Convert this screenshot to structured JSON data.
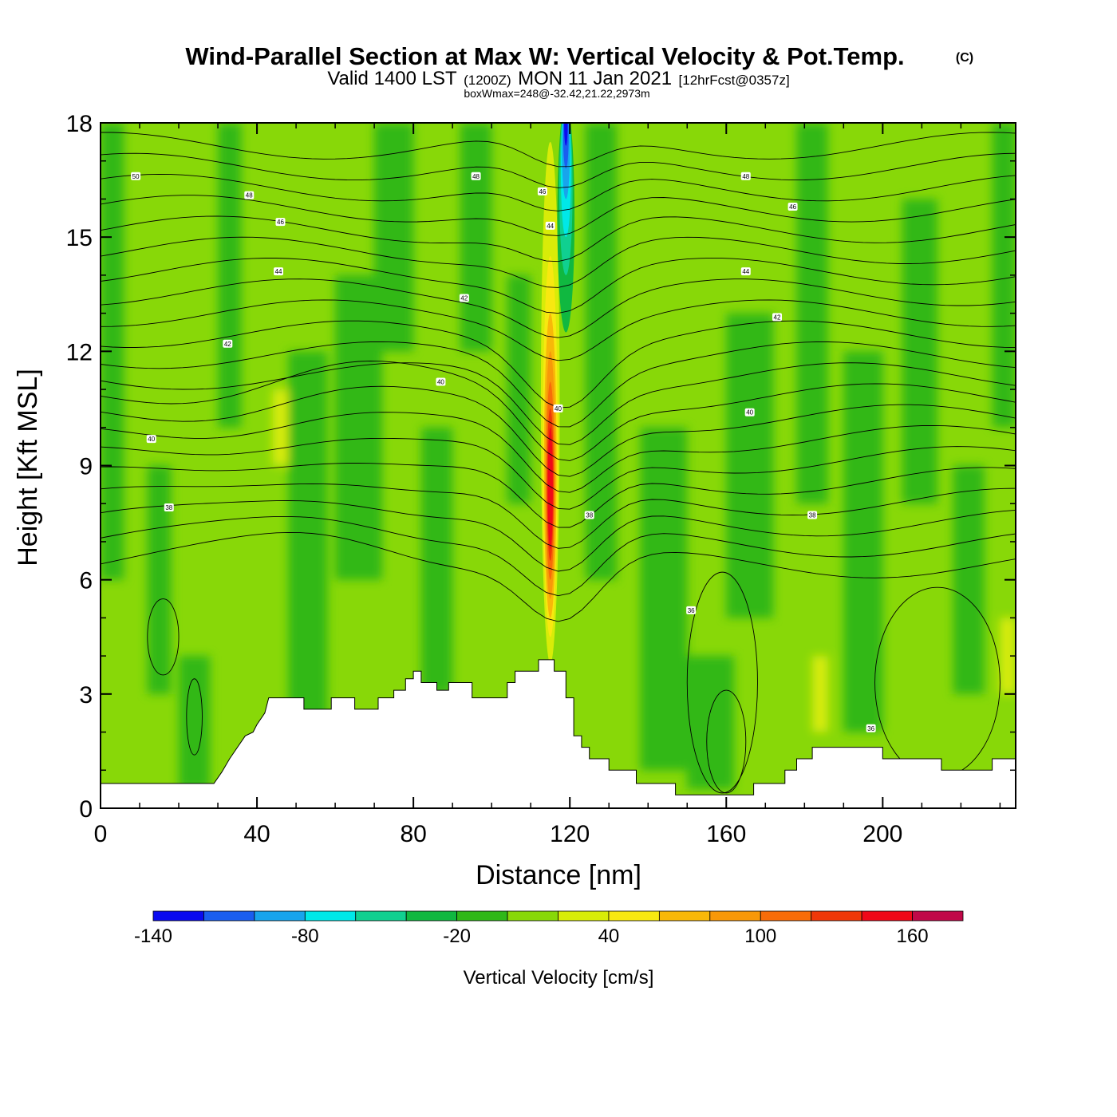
{
  "chart_data": {
    "type": "heatmap",
    "title": "Wind-Parallel Section at Max W: Vertical Velocity & Pot.Temp.",
    "title_mark": "(C)",
    "subtitle": {
      "valid_prefix": "Valid 1400 LST",
      "utc": "(1200Z)",
      "date": "MON 11 Jan 2021",
      "forecast": "[12hrFcst@0357z]"
    },
    "box_info": "boxWmax=248@-32.42,21.22,2973m",
    "xlabel": "Distance [nm]",
    "ylabel": "Height [Kft MSL]",
    "xlim": [
      0,
      234
    ],
    "ylim": [
      0,
      18
    ],
    "x_ticks": [
      0,
      40,
      80,
      120,
      160,
      200
    ],
    "y_ticks": [
      0,
      3,
      6,
      9,
      12,
      15,
      18
    ],
    "colorbar": {
      "label": "Vertical Velocity [cm/s]",
      "tick_labels": [
        "-140",
        "-80",
        "-20",
        "40",
        "100",
        "160"
      ],
      "tick_values": [
        -140,
        -80,
        -20,
        40,
        100,
        160
      ],
      "boundaries": [
        -140,
        -120,
        -100,
        -80,
        -60,
        -40,
        -20,
        0,
        20,
        40,
        60,
        80,
        100,
        120,
        140,
        160,
        180
      ],
      "colors": [
        "#0a0af0",
        "#1a5ef0",
        "#18a4ec",
        "#00e8e8",
        "#10d090",
        "#10b840",
        "#30b818",
        "#88d808",
        "#d8ec08",
        "#f8e810",
        "#f8b808",
        "#f89808",
        "#f86c08",
        "#f03808",
        "#f00818",
        "#c00848"
      ]
    },
    "background_band_color": "#88d808",
    "updraft_core": {
      "x": 115,
      "max_w_cm_s": 248
    },
    "downdraft_core": {
      "x": 119,
      "min_w_cm_s": -140
    },
    "theta_contour_labels": [
      {
        "text": "50",
        "x": 9,
        "y": 16.6
      },
      {
        "text": "48",
        "x": 38,
        "y": 16.1
      },
      {
        "text": "46",
        "x": 46,
        "y": 15.4
      },
      {
        "text": "44",
        "x": 45.5,
        "y": 14.1
      },
      {
        "text": "42",
        "x": 32.5,
        "y": 12.2
      },
      {
        "text": "40",
        "x": 13,
        "y": 9.7
      },
      {
        "text": "38",
        "x": 17.5,
        "y": 7.9
      },
      {
        "text": "48",
        "x": 96,
        "y": 16.6
      },
      {
        "text": "46",
        "x": 113,
        "y": 16.2
      },
      {
        "text": "44",
        "x": 115,
        "y": 15.3
      },
      {
        "text": "42",
        "x": 93,
        "y": 13.4
      },
      {
        "text": "40",
        "x": 87,
        "y": 11.2
      },
      {
        "text": "40",
        "x": 117,
        "y": 10.5
      },
      {
        "text": "38",
        "x": 125,
        "y": 7.7
      },
      {
        "text": "48",
        "x": 165,
        "y": 16.6
      },
      {
        "text": "46",
        "x": 177,
        "y": 15.8
      },
      {
        "text": "44",
        "x": 165,
        "y": 14.1
      },
      {
        "text": "42",
        "x": 173,
        "y": 12.9
      },
      {
        "text": "40",
        "x": 166,
        "y": 10.4
      },
      {
        "text": "38",
        "x": 182,
        "y": 7.7
      },
      {
        "text": "36",
        "x": 151,
        "y": 5.2
      },
      {
        "text": "36",
        "x": 197,
        "y": 2.1
      }
    ],
    "terrain_kft": [
      [
        0,
        0.65
      ],
      [
        29,
        0.65
      ],
      [
        31,
        0.95
      ],
      [
        33,
        1.3
      ],
      [
        35,
        1.6
      ],
      [
        37,
        1.9
      ],
      [
        39,
        2.0
      ],
      [
        40,
        2.2
      ],
      [
        42,
        2.5
      ],
      [
        43,
        2.9
      ],
      [
        52,
        2.9
      ],
      [
        52,
        2.6
      ],
      [
        59,
        2.6
      ],
      [
        59,
        2.9
      ],
      [
        65,
        2.9
      ],
      [
        65,
        2.6
      ],
      [
        71,
        2.6
      ],
      [
        71,
        2.9
      ],
      [
        75,
        2.9
      ],
      [
        75,
        3.1
      ],
      [
        78,
        3.1
      ],
      [
        78,
        3.4
      ],
      [
        80,
        3.4
      ],
      [
        80,
        3.6
      ],
      [
        82,
        3.6
      ],
      [
        82,
        3.3
      ],
      [
        86,
        3.3
      ],
      [
        86,
        3.1
      ],
      [
        89,
        3.1
      ],
      [
        89,
        3.3
      ],
      [
        95,
        3.3
      ],
      [
        95,
        2.9
      ],
      [
        104,
        2.9
      ],
      [
        104,
        3.3
      ],
      [
        106,
        3.3
      ],
      [
        106,
        3.6
      ],
      [
        112,
        3.6
      ],
      [
        112,
        3.9
      ],
      [
        116,
        3.9
      ],
      [
        116,
        3.6
      ],
      [
        119,
        3.6
      ],
      [
        119,
        2.9
      ],
      [
        121,
        2.9
      ],
      [
        121,
        1.9
      ],
      [
        123,
        1.9
      ],
      [
        123,
        1.6
      ],
      [
        125,
        1.6
      ],
      [
        125,
        1.3
      ],
      [
        130,
        1.3
      ],
      [
        130,
        1.0
      ],
      [
        137,
        1.0
      ],
      [
        137,
        0.65
      ],
      [
        147,
        0.65
      ],
      [
        147,
        0.35
      ],
      [
        167,
        0.35
      ],
      [
        167,
        0.65
      ],
      [
        175,
        0.65
      ],
      [
        175,
        1.0
      ],
      [
        178,
        1.0
      ],
      [
        178,
        1.3
      ],
      [
        182,
        1.3
      ],
      [
        182,
        1.6
      ],
      [
        200,
        1.6
      ],
      [
        200,
        1.3
      ],
      [
        215,
        1.3
      ],
      [
        215,
        1.0
      ],
      [
        228,
        1.0
      ],
      [
        228,
        1.3
      ],
      [
        234,
        1.3
      ]
    ]
  }
}
